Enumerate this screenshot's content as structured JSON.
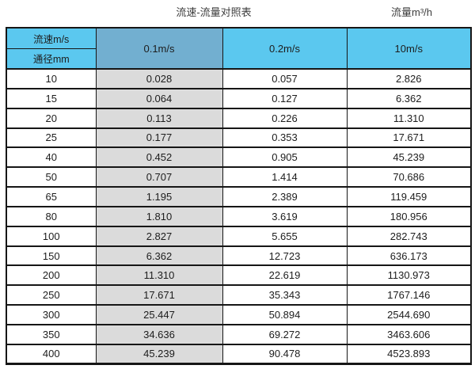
{
  "titles": {
    "table_title": "流速-流量对照表",
    "unit_title": "流量m³/h"
  },
  "table": {
    "corner_top_label": "流速m/s",
    "corner_bottom_label": "通径mm",
    "velocity_columns": [
      "0.1m/s",
      "0.2m/s",
      "10m/s"
    ],
    "rows": [
      {
        "diameter": "10",
        "values": [
          "0.028",
          "0.057",
          "2.826"
        ]
      },
      {
        "diameter": "15",
        "values": [
          "0.064",
          "0.127",
          "6.362"
        ]
      },
      {
        "diameter": "20",
        "values": [
          "0.113",
          "0.226",
          "11.310"
        ]
      },
      {
        "diameter": "25",
        "values": [
          "0.177",
          "0.353",
          "17.671"
        ]
      },
      {
        "diameter": "40",
        "values": [
          "0.452",
          "0.905",
          "45.239"
        ]
      },
      {
        "diameter": "50",
        "values": [
          "0.707",
          "1.414",
          "70.686"
        ]
      },
      {
        "diameter": "65",
        "values": [
          "1.195",
          "2.389",
          "119.459"
        ]
      },
      {
        "diameter": "80",
        "values": [
          "1.810",
          "3.619",
          "180.956"
        ]
      },
      {
        "diameter": "100",
        "values": [
          "2.827",
          "5.655",
          "282.743"
        ]
      },
      {
        "diameter": "150",
        "values": [
          "6.362",
          "12.723",
          "636.173"
        ]
      },
      {
        "diameter": "200",
        "values": [
          "11.310",
          "22.619",
          "1130.973"
        ]
      },
      {
        "diameter": "250",
        "values": [
          "17.671",
          "35.343",
          "1767.146"
        ]
      },
      {
        "diameter": "300",
        "values": [
          "25.447",
          "50.894",
          "2544.690"
        ]
      },
      {
        "diameter": "350",
        "values": [
          "34.636",
          "69.272",
          "3463.606"
        ]
      },
      {
        "diameter": "400",
        "values": [
          "45.239",
          "90.478",
          "4523.893"
        ]
      }
    ]
  },
  "chart_data": {
    "type": "table",
    "title": "流速-流量对照表",
    "unit_label": "流量m³/h",
    "column_header_label": "流速m/s",
    "row_header_label": "通径mm",
    "categories": [
      10,
      15,
      20,
      25,
      40,
      50,
      65,
      80,
      100,
      150,
      200,
      250,
      300,
      350,
      400
    ],
    "series": [
      {
        "name": "0.1m/s",
        "values": [
          0.028,
          0.064,
          0.113,
          0.177,
          0.452,
          0.707,
          1.195,
          1.81,
          2.827,
          6.362,
          11.31,
          17.671,
          25.447,
          34.636,
          45.239
        ]
      },
      {
        "name": "0.2m/s",
        "values": [
          0.057,
          0.127,
          0.226,
          0.353,
          0.905,
          1.414,
          2.389,
          3.619,
          5.655,
          12.723,
          22.619,
          35.343,
          50.894,
          69.272,
          90.478
        ]
      },
      {
        "name": "10m/s",
        "values": [
          2.826,
          6.362,
          11.31,
          17.671,
          45.239,
          70.686,
          119.459,
          180.956,
          282.743,
          636.173,
          1130.973,
          1767.146,
          2544.69,
          3463.606,
          4523.893
        ]
      }
    ]
  },
  "colors": {
    "header_blue": "#5bc8ef",
    "highlight_header_blue": "#72afd0",
    "highlight_column_gray": "#dbdbdb",
    "border": "#161616"
  }
}
